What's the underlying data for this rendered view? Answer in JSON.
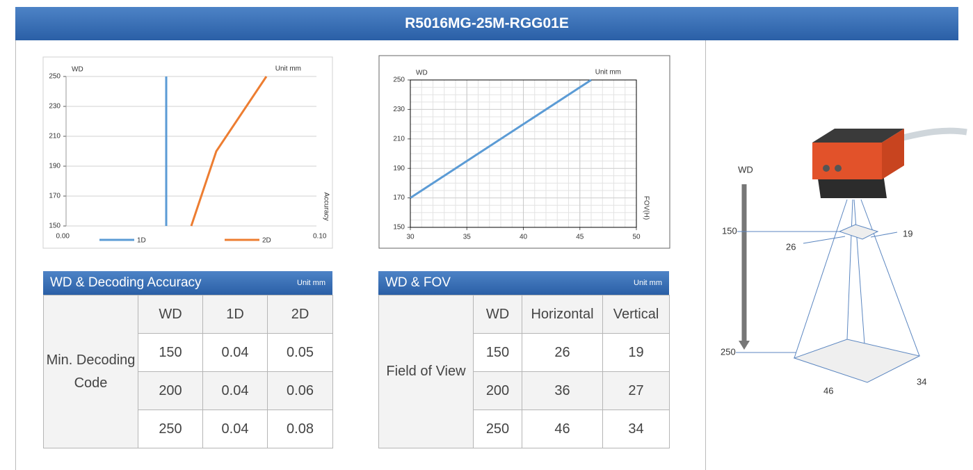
{
  "header": {
    "title": "R5016MG-25M-RGG01E"
  },
  "chart_data": [
    {
      "type": "line",
      "y_label": "WD",
      "unit": "Unit mm",
      "x_label": "Accuracy",
      "xlim": [
        0,
        0.1
      ],
      "xticks": [
        {
          "value": 0,
          "label": "0.00"
        },
        {
          "value": 0.1,
          "label": "0.10"
        }
      ],
      "ylim": [
        150,
        250
      ],
      "yticks": [
        150,
        170,
        190,
        210,
        230,
        250
      ],
      "grid": "y",
      "legend": "bottom",
      "series": [
        {
          "name": "1D",
          "color": "#5b9bd5",
          "x": [
            0.04,
            0.04,
            0.04
          ],
          "values": [
            150,
            200,
            250
          ]
        },
        {
          "name": "2D",
          "color": "#ed7d31",
          "x": [
            0.05,
            0.06,
            0.08
          ],
          "values": [
            150,
            200,
            250
          ]
        }
      ]
    },
    {
      "type": "line",
      "y_label": "WD",
      "unit": "Unit mm",
      "x_label": "FOV(H)",
      "xlim": [
        30,
        50
      ],
      "xticks": [
        30,
        35,
        40,
        45,
        50
      ],
      "ylim": [
        150,
        250
      ],
      "yticks": [
        150,
        170,
        190,
        210,
        230,
        250
      ],
      "grid": "both",
      "minor_grid": true,
      "series": [
        {
          "color": "#5b9bd5",
          "x": [
            30,
            36,
            46
          ],
          "values": [
            170,
            200,
            250
          ]
        }
      ]
    }
  ],
  "tables": [
    {
      "title": "WD & Decoding Accuracy",
      "unit": "Unit mm",
      "row_label": "Min. Decoding Code",
      "columns": [
        "WD",
        "1D",
        "2D"
      ],
      "rows": [
        [
          "150",
          "0.04",
          "0.05"
        ],
        [
          "200",
          "0.04",
          "0.06"
        ],
        [
          "250",
          "0.04",
          "0.08"
        ]
      ]
    },
    {
      "title": "WD & FOV",
      "unit": "Unit mm",
      "row_label": "Field of View",
      "columns": [
        "WD",
        "Horizontal",
        "Vertical"
      ],
      "rows": [
        [
          "150",
          "26",
          "19"
        ],
        [
          "200",
          "36",
          "27"
        ],
        [
          "250",
          "46",
          "34"
        ]
      ]
    }
  ],
  "diagram": {
    "axis_label": "WD",
    "near_wd": "150",
    "far_wd": "250",
    "near_h": "26",
    "near_v": "19",
    "far_h": "46",
    "far_v": "34"
  }
}
